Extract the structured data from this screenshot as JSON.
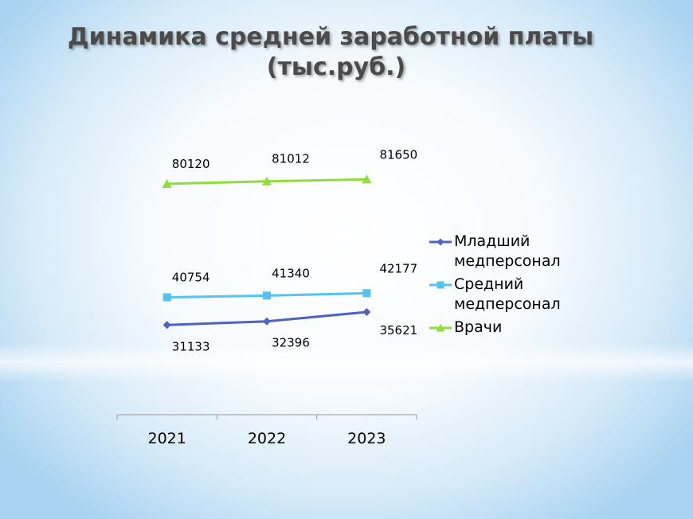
{
  "title_line1": "Динамика средней заработной платы",
  "title_line2": "(тыс.руб.)",
  "chart_data": {
    "type": "line",
    "title": "Динамика средней заработной платы (тыс.руб.)",
    "categories": [
      "2021",
      "2022",
      "2023"
    ],
    "ylim": [
      0,
      100000
    ],
    "grid": false,
    "legend_position": "right",
    "series": [
      {
        "name": "Младший медперсонал",
        "values": [
          31133,
          32396,
          35621
        ],
        "color": "#4f62c0",
        "marker": "diamond",
        "label_position": "below"
      },
      {
        "name": "Средний медперсонал",
        "values": [
          40754,
          41340,
          42177
        ],
        "color": "#55c3ee",
        "marker": "square",
        "label_position": "above"
      },
      {
        "name": "Врачи",
        "values": [
          80120,
          81012,
          81650
        ],
        "color": "#8fdc3c",
        "marker": "triangle",
        "label_position": "above"
      }
    ]
  }
}
